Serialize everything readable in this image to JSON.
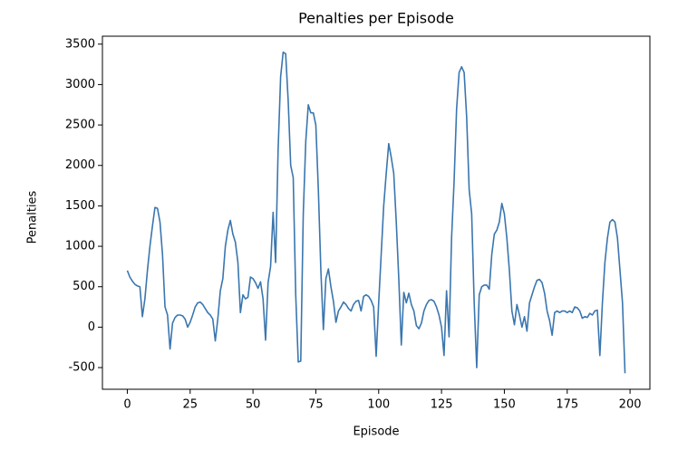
{
  "chart_data": {
    "type": "line",
    "title": "Penalties per Episode",
    "x_label": "Episode",
    "y_label": "Penalties",
    "xlim": [
      -9.9,
      207.9
    ],
    "ylim": [
      -768,
      3598
    ],
    "xticks": [
      0,
      25,
      50,
      75,
      100,
      125,
      150,
      175,
      200
    ],
    "yticks": [
      -500,
      0,
      500,
      1000,
      1500,
      2000,
      2500,
      3000,
      3500
    ],
    "series": [
      {
        "name": "Penalties",
        "color": "#3a76af",
        "x": [
          0,
          1,
          2,
          3,
          4,
          5,
          6,
          7,
          8,
          9,
          10,
          11,
          12,
          13,
          14,
          15,
          16,
          17,
          18,
          19,
          20,
          21,
          22,
          23,
          24,
          25,
          26,
          27,
          28,
          29,
          30,
          31,
          32,
          33,
          34,
          35,
          36,
          37,
          38,
          39,
          40,
          41,
          42,
          43,
          44,
          45,
          46,
          47,
          48,
          49,
          50,
          51,
          52,
          53,
          54,
          55,
          56,
          57,
          58,
          59,
          60,
          61,
          62,
          63,
          64,
          65,
          66,
          67,
          68,
          69,
          70,
          71,
          72,
          73,
          74,
          75,
          76,
          77,
          78,
          79,
          80,
          81,
          82,
          83,
          84,
          85,
          86,
          87,
          88,
          89,
          90,
          91,
          92,
          93,
          94,
          95,
          96,
          97,
          98,
          99,
          100,
          101,
          102,
          103,
          104,
          105,
          106,
          107,
          108,
          109,
          110,
          111,
          112,
          113,
          114,
          115,
          116,
          117,
          118,
          119,
          120,
          121,
          122,
          123,
          124,
          125,
          126,
          127,
          128,
          129,
          130,
          131,
          132,
          133,
          134,
          135,
          136,
          137,
          138,
          139,
          140,
          141,
          142,
          143,
          144,
          145,
          146,
          147,
          148,
          149,
          150,
          151,
          152,
          153,
          154,
          155,
          156,
          157,
          158,
          159,
          160,
          161,
          162,
          163,
          164,
          165,
          166,
          167,
          168,
          169,
          170,
          171,
          172,
          173,
          174,
          175,
          176,
          177,
          178,
          179,
          180,
          181,
          182,
          183,
          184,
          185,
          186,
          187,
          188,
          189,
          190,
          191,
          192,
          193,
          194,
          195,
          196,
          197,
          198
        ],
        "values": [
          700,
          620,
          570,
          530,
          510,
          500,
          130,
          350,
          700,
          1000,
          1250,
          1480,
          1470,
          1300,
          900,
          250,
          150,
          -270,
          50,
          120,
          150,
          150,
          140,
          100,
          0,
          60,
          150,
          250,
          300,
          310,
          280,
          230,
          180,
          150,
          100,
          -170,
          100,
          450,
          600,
          1000,
          1200,
          1320,
          1150,
          1050,
          800,
          180,
          400,
          350,
          370,
          620,
          600,
          550,
          480,
          560,
          350,
          -160,
          550,
          750,
          1420,
          800,
          2200,
          3100,
          3400,
          3380,
          2800,
          2000,
          1850,
          400,
          -430,
          -420,
          1400,
          2300,
          2750,
          2650,
          2650,
          2500,
          1700,
          700,
          -30,
          600,
          720,
          500,
          320,
          60,
          200,
          250,
          310,
          280,
          230,
          200,
          280,
          320,
          330,
          200,
          380,
          400,
          380,
          330,
          250,
          -360,
          300,
          900,
          1500,
          1900,
          2270,
          2100,
          1900,
          1300,
          600,
          -220,
          430,
          300,
          420,
          280,
          200,
          20,
          -20,
          50,
          200,
          280,
          330,
          340,
          320,
          250,
          150,
          0,
          -350,
          450,
          -120,
          1100,
          1800,
          2700,
          3150,
          3220,
          3150,
          2600,
          1700,
          1400,
          300,
          -500,
          400,
          500,
          520,
          520,
          470,
          900,
          1150,
          1200,
          1300,
          1530,
          1400,
          1100,
          700,
          200,
          30,
          280,
          150,
          0,
          130,
          -50,
          300,
          400,
          500,
          580,
          590,
          550,
          420,
          200,
          80,
          -100,
          180,
          200,
          180,
          200,
          200,
          180,
          200,
          180,
          250,
          240,
          200,
          110,
          130,
          120,
          170,
          150,
          200,
          210,
          -350,
          300,
          800,
          1100,
          1300,
          1330,
          1300,
          1100,
          700,
          300,
          -570
        ]
      }
    ]
  }
}
